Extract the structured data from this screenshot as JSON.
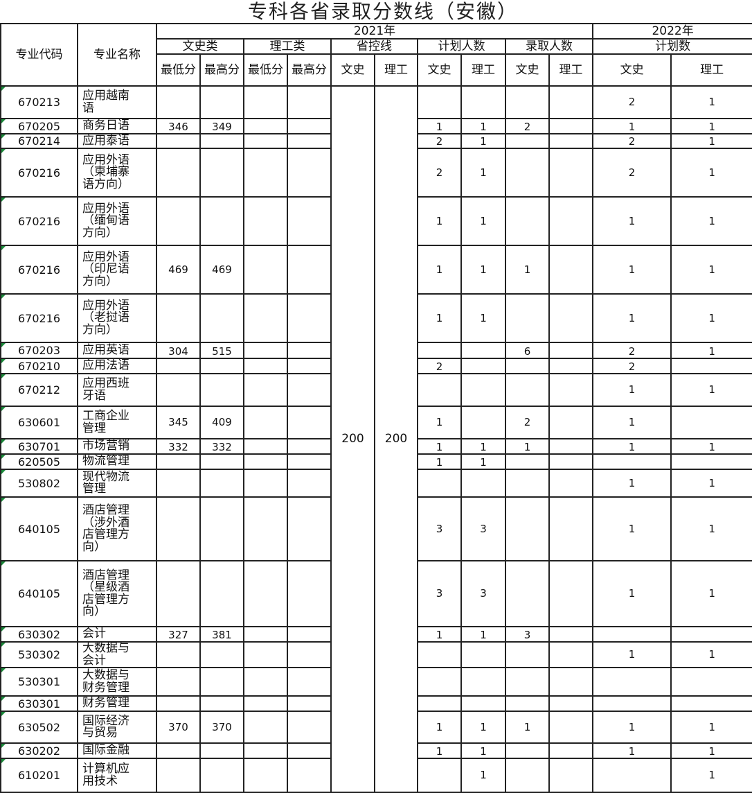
{
  "title": "专科各省录取分数线（安徽）",
  "header": {
    "code": "专业代码",
    "name": "专业名称",
    "year2021": "2021年",
    "year2022": "2022年",
    "wenshi_class": "文史类",
    "ligong_class": "理工类",
    "control_line": "省控线",
    "plan_count": "计划人数",
    "admit_count": "录取人数",
    "plan_2022": "计划数",
    "min_score": "最低分",
    "max_score": "最高分",
    "wenshi": "文史",
    "ligong": "理工"
  },
  "control_line_values": {
    "wenshi": "200",
    "ligong": "200"
  },
  "rows": [
    [
      "670213",
      "应用越南语",
      "",
      "",
      "",
      "",
      "",
      "",
      "",
      "",
      "2",
      "1"
    ],
    [
      "670205",
      "商务日语",
      "346",
      "349",
      "",
      "",
      "1",
      "1",
      "2",
      "",
      "1",
      "1"
    ],
    [
      "670214",
      "应用泰语",
      "",
      "",
      "",
      "",
      "2",
      "1",
      "",
      "",
      "2",
      "1"
    ],
    [
      "670216",
      "应用外语（柬埔寨语方向）",
      "",
      "",
      "",
      "",
      "2",
      "1",
      "",
      "",
      "2",
      "1"
    ],
    [
      "670216",
      "应用外语（缅甸语方向）",
      "",
      "",
      "",
      "",
      "1",
      "1",
      "",
      "",
      "1",
      "1"
    ],
    [
      "670216",
      "应用外语（印尼语方向）",
      "469",
      "469",
      "",
      "",
      "1",
      "1",
      "1",
      "",
      "1",
      "1"
    ],
    [
      "670216",
      "应用外语（老挝语方向）",
      "",
      "",
      "",
      "",
      "1",
      "1",
      "",
      "",
      "1",
      "1"
    ],
    [
      "670203",
      "应用英语",
      "304",
      "515",
      "",
      "",
      "",
      "",
      "6",
      "",
      "2",
      "1"
    ],
    [
      "670210",
      "应用法语",
      "",
      "",
      "",
      "",
      "2",
      "",
      "",
      "",
      "2",
      ""
    ],
    [
      "670212",
      "应用西班牙语",
      "",
      "",
      "",
      "",
      "",
      "",
      "",
      "",
      "1",
      "1"
    ],
    [
      "630601",
      "工商企业管理",
      "345",
      "409",
      "",
      "",
      "1",
      "",
      "2",
      "",
      "1",
      ""
    ],
    [
      "630701",
      "市场营销",
      "332",
      "332",
      "",
      "",
      "1",
      "1",
      "1",
      "",
      "1",
      "1"
    ],
    [
      "620505",
      "物流管理",
      "",
      "",
      "",
      "",
      "1",
      "1",
      "",
      "",
      "",
      ""
    ],
    [
      "530802",
      "现代物流管理",
      "",
      "",
      "",
      "",
      "",
      "",
      "",
      "",
      "1",
      "1"
    ],
    [
      "640105",
      "酒店管理（涉外酒店管理方向）",
      "",
      "",
      "",
      "",
      "3",
      "3",
      "",
      "",
      "1",
      "1"
    ],
    [
      "640105",
      "酒店管理（星级酒店管理方向）",
      "",
      "",
      "",
      "",
      "3",
      "3",
      "",
      "",
      "1",
      "1"
    ],
    [
      "630302",
      "会计",
      "327",
      "381",
      "",
      "",
      "1",
      "1",
      "3",
      "",
      "",
      ""
    ],
    [
      "530302",
      "大数据与会计",
      "",
      "",
      "",
      "",
      "",
      "",
      "",
      "",
      "1",
      "1"
    ],
    [
      "530301",
      "大数据与财务管理",
      "",
      "",
      "",
      "",
      "",
      "",
      "",
      "",
      "",
      ""
    ],
    [
      "630301",
      "财务管理",
      "",
      "",
      "",
      "",
      "",
      "",
      "",
      "",
      "",
      ""
    ],
    [
      "630502",
      "国际经济与贸易",
      "370",
      "370",
      "",
      "",
      "1",
      "1",
      "1",
      "",
      "1",
      "1"
    ],
    [
      "630202",
      "国际金融",
      "",
      "",
      "",
      "",
      "1",
      "1",
      "",
      "",
      "1",
      "1"
    ],
    [
      "610201",
      "计算机应用技术",
      "",
      "",
      "",
      "",
      "",
      "1",
      "",
      "",
      "",
      "1"
    ]
  ]
}
